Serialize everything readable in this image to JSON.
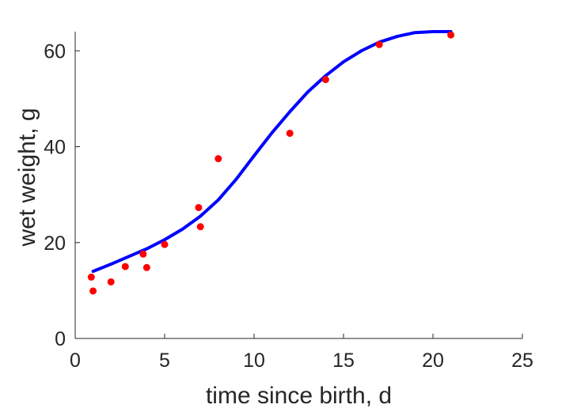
{
  "chart_data": {
    "type": "scatter",
    "xlabel": "time since birth, d",
    "ylabel": "wet weight, g",
    "xlim": [
      0,
      25
    ],
    "ylim": [
      0,
      64
    ],
    "xticks": [
      0,
      5,
      10,
      15,
      20,
      25
    ],
    "yticks": [
      0,
      20,
      40,
      60
    ],
    "grid": false,
    "series": [
      {
        "kind": "points",
        "color": "#ff0000",
        "points": [
          {
            "x": 0.9,
            "y": 12.8
          },
          {
            "x": 1.0,
            "y": 9.9
          },
          {
            "x": 2.0,
            "y": 11.8
          },
          {
            "x": 2.8,
            "y": 15.0
          },
          {
            "x": 3.8,
            "y": 17.6
          },
          {
            "x": 4.0,
            "y": 14.8
          },
          {
            "x": 5.0,
            "y": 19.6
          },
          {
            "x": 6.9,
            "y": 27.3
          },
          {
            "x": 7.0,
            "y": 23.3
          },
          {
            "x": 8.0,
            "y": 37.5
          },
          {
            "x": 12.0,
            "y": 42.8
          },
          {
            "x": 14.0,
            "y": 54.0
          },
          {
            "x": 17.0,
            "y": 61.3
          },
          {
            "x": 21.0,
            "y": 63.3
          }
        ]
      },
      {
        "kind": "line",
        "color": "#0000ff",
        "points": [
          {
            "x": 1.0,
            "y": 14.0
          },
          {
            "x": 2.0,
            "y": 15.5
          },
          {
            "x": 3.0,
            "y": 17.1
          },
          {
            "x": 4.0,
            "y": 18.7
          },
          {
            "x": 5.0,
            "y": 20.6
          },
          {
            "x": 6.0,
            "y": 22.8
          },
          {
            "x": 7.0,
            "y": 25.5
          },
          {
            "x": 8.0,
            "y": 28.9
          },
          {
            "x": 9.0,
            "y": 33.2
          },
          {
            "x": 10.0,
            "y": 38.1
          },
          {
            "x": 11.0,
            "y": 42.9
          },
          {
            "x": 12.0,
            "y": 47.3
          },
          {
            "x": 13.0,
            "y": 51.4
          },
          {
            "x": 14.0,
            "y": 54.8
          },
          {
            "x": 15.0,
            "y": 57.7
          },
          {
            "x": 16.0,
            "y": 60.0
          },
          {
            "x": 17.0,
            "y": 61.8
          },
          {
            "x": 18.0,
            "y": 63.0
          },
          {
            "x": 19.0,
            "y": 63.8
          },
          {
            "x": 20.0,
            "y": 64.0
          },
          {
            "x": 21.0,
            "y": 64.0
          }
        ]
      }
    ]
  }
}
